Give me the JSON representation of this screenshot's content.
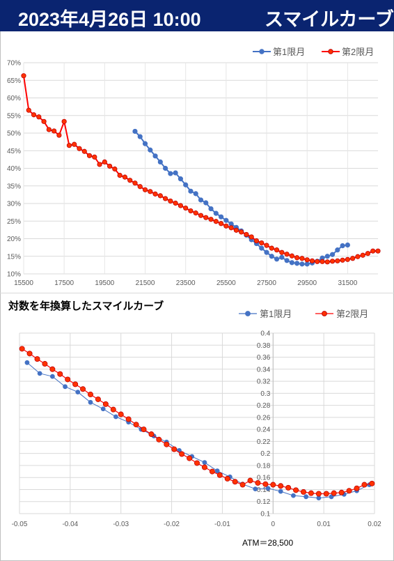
{
  "header": {
    "datetime": "2023年4月26日 10:00",
    "title": "スマイルカーブ"
  },
  "chart2_title": "対数を年換算したスマイルカーブ",
  "atm_label": "ATM＝28,500",
  "colors": {
    "blue": "#4472c4",
    "red": "#ff0000",
    "red_fill": "#ff3300",
    "header_bg": "#0a2470"
  },
  "chart_data": [
    {
      "type": "line",
      "title": "",
      "xlabel": "",
      "ylabel": "",
      "xlim": [
        15500,
        33000
      ],
      "ylim": [
        10,
        70
      ],
      "x_ticks": [
        15500,
        17500,
        19500,
        21500,
        23500,
        25500,
        27500,
        29500,
        31500
      ],
      "y_ticks": [
        10,
        15,
        20,
        25,
        30,
        35,
        40,
        45,
        50,
        55,
        60,
        65,
        70
      ],
      "y_tick_labels": [
        "10%",
        "15%",
        "20%",
        "25%",
        "30%",
        "35%",
        "40%",
        "45%",
        "50%",
        "55%",
        "60%",
        "65%",
        "70%"
      ],
      "grid": true,
      "legend": "top-right",
      "series": [
        {
          "name": "第1限月",
          "color": "#4472c4",
          "x": [
            21000,
            21250,
            21500,
            21750,
            22000,
            22250,
            22500,
            22750,
            23000,
            23250,
            23500,
            23750,
            24000,
            24250,
            24500,
            24750,
            25000,
            25250,
            25500,
            25750,
            26000,
            26250,
            26500,
            26750,
            27000,
            27250,
            27500,
            27750,
            28000,
            28250,
            28500,
            28750,
            29000,
            29250,
            29500,
            29750,
            30000,
            30250,
            30500,
            30750,
            31000,
            31250,
            31500
          ],
          "y": [
            50.5,
            49,
            47,
            45.2,
            43.5,
            41.8,
            40,
            38.5,
            38.7,
            37,
            35.3,
            33.5,
            32.8,
            31,
            30.2,
            28.5,
            27.2,
            26.2,
            25.2,
            24.2,
            23.2,
            22.2,
            21,
            19.7,
            18.6,
            17.3,
            16.1,
            15,
            14.2,
            14.7,
            13.8,
            13.2,
            13,
            12.8,
            12.8,
            13.1,
            13.6,
            14.5,
            15,
            15.5,
            16.8,
            18,
            18.2
          ]
        },
        {
          "name": "第2限月",
          "color": "#ff0000",
          "x": [
            15500,
            15750,
            16000,
            16250,
            16500,
            16750,
            17000,
            17250,
            17500,
            17750,
            18000,
            18250,
            18500,
            18750,
            19000,
            19250,
            19500,
            19750,
            20000,
            20250,
            20500,
            20750,
            21000,
            21250,
            21500,
            21750,
            22000,
            22250,
            22500,
            22750,
            23000,
            23250,
            23500,
            23750,
            24000,
            24250,
            24500,
            24750,
            25000,
            25250,
            25500,
            25750,
            26000,
            26250,
            26500,
            26750,
            27000,
            27250,
            27500,
            27750,
            28000,
            28250,
            28500,
            28750,
            29000,
            29250,
            29500,
            29750,
            30000,
            30250,
            30500,
            30750,
            31000,
            31250,
            31500,
            31750,
            32000,
            32250,
            32500,
            32750,
            33000
          ],
          "y": [
            66.3,
            56.5,
            55.2,
            54.6,
            53.3,
            51,
            50.6,
            49.4,
            53.3,
            46.5,
            46.8,
            45.6,
            44.8,
            43.6,
            43.2,
            41.1,
            41.8,
            40.6,
            39.8,
            38,
            37.5,
            36.6,
            35.8,
            34.8,
            33.9,
            33.4,
            32.7,
            32.2,
            31.4,
            30.7,
            30.1,
            29.4,
            28.7,
            27.9,
            27.3,
            26.6,
            26,
            25.5,
            24.9,
            24.3,
            23.6,
            23.1,
            22.4,
            21.9,
            21.2,
            20.5,
            19.4,
            18.8,
            18.1,
            17.3,
            16.8,
            16.1,
            15.6,
            15.1,
            14.6,
            14.4,
            14,
            13.7,
            13.5,
            13.5,
            13.4,
            13.6,
            13.7,
            13.9,
            14.1,
            14.4,
            14.9,
            15.3,
            15.8,
            16.5,
            16.5
          ]
        }
      ]
    },
    {
      "type": "line",
      "title": "対数を年換算したスマイルカーブ",
      "xlabel": "",
      "ylabel": "",
      "xlim": [
        -0.05,
        0.02
      ],
      "ylim": [
        0.1,
        0.4
      ],
      "x_ticks": [
        -0.05,
        -0.04,
        -0.03,
        -0.02,
        -0.01,
        0,
        0.01,
        0.02
      ],
      "x_tick_labels": [
        "-0.05",
        "-0.04",
        "-0.03",
        "-0.02",
        "-0.01",
        "0",
        "0.01",
        "0.02"
      ],
      "y_ticks": [
        0.1,
        0.12,
        0.14,
        0.16,
        0.18,
        0.2,
        0.22,
        0.24,
        0.26,
        0.28,
        0.3,
        0.32,
        0.34,
        0.36,
        0.38,
        0.4
      ],
      "y_tick_labels": [
        "0.1",
        "0.12",
        "0.14",
        "0.16",
        "0.18",
        "0.2",
        "0.22",
        "0.24",
        "0.26",
        "0.28",
        "0.3",
        "0.32",
        "0.34",
        "0.36",
        "0.38",
        "0.4"
      ],
      "grid": true,
      "legend": "top-right",
      "series": [
        {
          "name": "第1限月",
          "color": "#4472c4",
          "x": [
            -0.0485,
            -0.046,
            -0.0435,
            -0.041,
            -0.0385,
            -0.036,
            -0.0335,
            -0.031,
            -0.0285,
            -0.026,
            -0.0235,
            -0.021,
            -0.0185,
            -0.016,
            -0.0135,
            -0.011,
            -0.0085,
            -0.006,
            -0.0035,
            -0.001,
            0.0015,
            0.004,
            0.0065,
            0.009,
            0.0115,
            0.014,
            0.0165,
            0.019
          ],
          "y": [
            0.351,
            0.333,
            0.328,
            0.311,
            0.302,
            0.285,
            0.274,
            0.261,
            0.252,
            0.24,
            0.229,
            0.219,
            0.205,
            0.195,
            0.185,
            0.171,
            0.161,
            0.149,
            0.141,
            0.142,
            0.137,
            0.13,
            0.128,
            0.126,
            0.128,
            0.132,
            0.138,
            0.148
          ]
        },
        {
          "name": "第2限月",
          "color": "#ff0000",
          "x": [
            -0.0495,
            -0.048,
            -0.0465,
            -0.045,
            -0.0435,
            -0.042,
            -0.0405,
            -0.039,
            -0.0375,
            -0.036,
            -0.0345,
            -0.033,
            -0.0315,
            -0.03,
            -0.0285,
            -0.027,
            -0.0255,
            -0.024,
            -0.0225,
            -0.021,
            -0.0195,
            -0.018,
            -0.0165,
            -0.015,
            -0.0135,
            -0.012,
            -0.0105,
            -0.009,
            -0.0075,
            -0.006,
            -0.0045,
            -0.003,
            -0.0015,
            0.0,
            0.0015,
            0.003,
            0.0045,
            0.006,
            0.0075,
            0.009,
            0.0105,
            0.012,
            0.0135,
            0.015,
            0.0165,
            0.018,
            0.0195
          ],
          "y": [
            0.374,
            0.366,
            0.357,
            0.349,
            0.34,
            0.332,
            0.323,
            0.315,
            0.307,
            0.298,
            0.29,
            0.282,
            0.273,
            0.265,
            0.257,
            0.248,
            0.24,
            0.232,
            0.223,
            0.215,
            0.207,
            0.199,
            0.192,
            0.184,
            0.177,
            0.17,
            0.164,
            0.158,
            0.153,
            0.148,
            0.155,
            0.151,
            0.149,
            0.148,
            0.146,
            0.143,
            0.139,
            0.136,
            0.134,
            0.133,
            0.133,
            0.134,
            0.135,
            0.138,
            0.142,
            0.148,
            0.15
          ]
        }
      ]
    }
  ]
}
